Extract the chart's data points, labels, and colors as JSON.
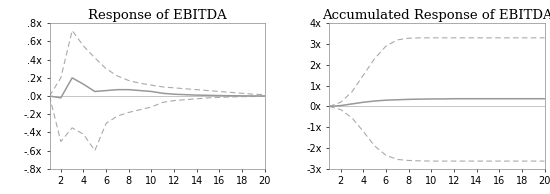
{
  "title_left": "Response of EBITDA",
  "title_right": "Accumulated Response of EBITDA",
  "x": [
    1,
    2,
    3,
    4,
    5,
    6,
    7,
    8,
    9,
    10,
    11,
    12,
    13,
    14,
    15,
    16,
    17,
    18,
    19,
    20
  ],
  "left_center": [
    0.0,
    -0.02,
    0.2,
    0.13,
    0.05,
    0.06,
    0.07,
    0.07,
    0.06,
    0.05,
    0.03,
    0.02,
    0.015,
    0.01,
    0.008,
    0.005,
    0.003,
    0.002,
    0.001,
    0.001
  ],
  "left_upper": [
    0.0,
    0.2,
    0.72,
    0.55,
    0.42,
    0.3,
    0.22,
    0.17,
    0.14,
    0.12,
    0.1,
    0.09,
    0.08,
    0.07,
    0.06,
    0.05,
    0.04,
    0.03,
    0.02,
    0.015
  ],
  "left_lower": [
    0.0,
    -0.5,
    -0.35,
    -0.42,
    -0.6,
    -0.3,
    -0.22,
    -0.18,
    -0.15,
    -0.12,
    -0.07,
    -0.05,
    -0.04,
    -0.03,
    -0.02,
    -0.015,
    -0.01,
    -0.007,
    -0.005,
    -0.003
  ],
  "right_center": [
    0.0,
    0.04,
    0.12,
    0.2,
    0.26,
    0.3,
    0.32,
    0.34,
    0.35,
    0.36,
    0.36,
    0.37,
    0.37,
    0.37,
    0.37,
    0.37,
    0.37,
    0.37,
    0.37,
    0.37
  ],
  "right_upper": [
    0.0,
    0.2,
    0.7,
    1.5,
    2.3,
    2.9,
    3.2,
    3.28,
    3.3,
    3.3,
    3.3,
    3.3,
    3.3,
    3.3,
    3.3,
    3.3,
    3.3,
    3.3,
    3.3,
    3.3
  ],
  "right_lower": [
    0.0,
    -0.15,
    -0.55,
    -1.2,
    -1.9,
    -2.35,
    -2.55,
    -2.6,
    -2.62,
    -2.63,
    -2.63,
    -2.63,
    -2.63,
    -2.63,
    -2.63,
    -2.63,
    -2.63,
    -2.63,
    -2.63,
    -2.63
  ],
  "left_ylim": [
    -0.8,
    0.8
  ],
  "left_yticks": [
    -0.8,
    -0.6,
    -0.4,
    -0.2,
    0.0,
    0.2,
    0.4,
    0.6,
    0.8
  ],
  "left_yticklabels": [
    "-.8x",
    "-.6x",
    "-.4x",
    "-.2x",
    ".0x",
    ".2x",
    ".4x",
    ".6x",
    ".8x"
  ],
  "right_ylim": [
    -3.0,
    4.0
  ],
  "right_yticks": [
    -3,
    -2,
    -1,
    0,
    1,
    2,
    3,
    4
  ],
  "right_yticklabels": [
    "-3x",
    "-2x",
    "-1x",
    "0x",
    "1x",
    "2x",
    "3x",
    "4x"
  ],
  "xticks": [
    2,
    4,
    6,
    8,
    10,
    12,
    14,
    16,
    18,
    20
  ],
  "center_color": "#999999",
  "band_color": "#aaaaaa",
  "zero_color": "#bbbbbb",
  "bg_color": "#ffffff",
  "title_fontsize": 9.5,
  "tick_fontsize": 7.0,
  "spine_color": "#888888"
}
